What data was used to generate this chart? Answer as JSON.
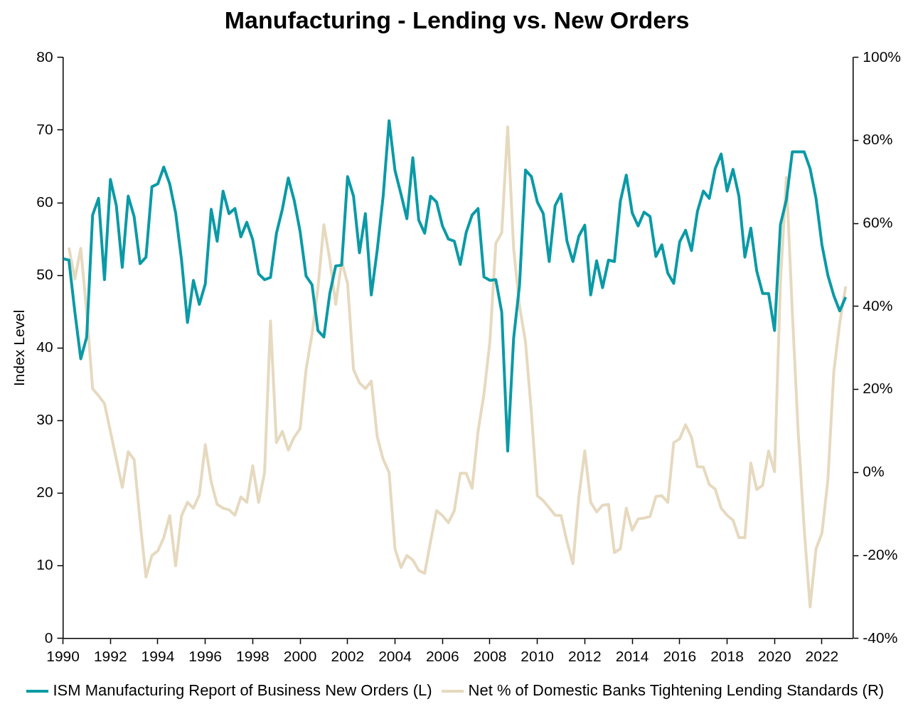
{
  "chart_data": {
    "type": "line",
    "title": "Manufacturing - Lending vs. New Orders",
    "ylabel": "Index Level",
    "x": [
      1990,
      1990.25,
      1990.5,
      1990.75,
      1991,
      1991.25,
      1991.5,
      1991.75,
      1992,
      1992.25,
      1992.5,
      1992.75,
      1993,
      1993.25,
      1993.5,
      1993.75,
      1994,
      1994.25,
      1994.5,
      1994.75,
      1995,
      1995.25,
      1995.5,
      1995.75,
      1996,
      1996.25,
      1996.5,
      1996.75,
      1997,
      1997.25,
      1997.5,
      1997.75,
      1998,
      1998.25,
      1998.5,
      1998.75,
      1999,
      1999.25,
      1999.5,
      1999.75,
      2000,
      2000.25,
      2000.5,
      2000.75,
      2001,
      2001.25,
      2001.5,
      2001.75,
      2002,
      2002.25,
      2002.5,
      2002.75,
      2003,
      2003.25,
      2003.5,
      2003.75,
      2004,
      2004.25,
      2004.5,
      2004.75,
      2005,
      2005.25,
      2005.5,
      2005.75,
      2006,
      2006.25,
      2006.5,
      2006.75,
      2007,
      2007.25,
      2007.5,
      2007.75,
      2008,
      2008.25,
      2008.5,
      2008.75,
      2009,
      2009.25,
      2009.5,
      2009.75,
      2010,
      2010.25,
      2010.5,
      2010.75,
      2011,
      2011.25,
      2011.5,
      2011.75,
      2012,
      2012.25,
      2012.5,
      2012.75,
      2013,
      2013.25,
      2013.5,
      2013.75,
      2014,
      2014.25,
      2014.5,
      2014.75,
      2015,
      2015.25,
      2015.5,
      2015.75,
      2016,
      2016.25,
      2016.5,
      2016.75,
      2017,
      2017.25,
      2017.5,
      2017.75,
      2018,
      2018.25,
      2018.5,
      2018.75,
      2019,
      2019.25,
      2019.5,
      2019.75,
      2020,
      2020.25,
      2020.5,
      2020.75,
      2021,
      2021.25,
      2021.5,
      2021.75,
      2022,
      2022.25,
      2022.5,
      2022.75,
      2023
    ],
    "series": [
      {
        "name": "ISM Manufacturing Report of Business New Orders (L)",
        "color": "#0a9aa6",
        "values": [
          52.3,
          52.1,
          45,
          38.5,
          41.5,
          58.3,
          60.6,
          49.4,
          63.2,
          59.6,
          51.1,
          60.9,
          58.1,
          51.6,
          52.5,
          62.2,
          62.6,
          64.9,
          62.6,
          58.6,
          52.1,
          43.5,
          49.3,
          46,
          48.8,
          59.1,
          54.7,
          61.6,
          58.5,
          59.2,
          55.3,
          57.3,
          54.9,
          50.2,
          49.4,
          49.7,
          55.8,
          59.1,
          63.4,
          60.3,
          56,
          49.9,
          48.7,
          42.4,
          41.5,
          47.5,
          51.3,
          51.4,
          63.6,
          60.9,
          53.1,
          58.5,
          47.3,
          53.5,
          60.9,
          71.3,
          64.4,
          61.2,
          57.8,
          66.2,
          57.6,
          55.8,
          60.9,
          60.1,
          56.8,
          55,
          54.7,
          51.5,
          55.9,
          58.3,
          59.2,
          49.8,
          49.3,
          49.4,
          44.9,
          25.8,
          41.3,
          48.7,
          64.5,
          63.6,
          60.1,
          58.5,
          51.9,
          59.6,
          61.2,
          54.7,
          51.9,
          55.4,
          56.9,
          47.3,
          52,
          48.3,
          52.1,
          51.9,
          60.2,
          63.8,
          58.6,
          56.8,
          58.7,
          58.1,
          52.6,
          54.2,
          50.3,
          48.9,
          54.6,
          56.2,
          53.4,
          58.8,
          61.6,
          60.6,
          64.7,
          66.7,
          61.6,
          64.6,
          60.9,
          52.5,
          56.5,
          50.6,
          47.5,
          47.5,
          42.4,
          57,
          60.4,
          67,
          67,
          67,
          64.7,
          60.6,
          54.2,
          50,
          47.2,
          45.1,
          47
        ]
      },
      {
        "name": "Net % of Domestic Banks Tightening Lending Standards (R)",
        "color": "#e6d9bf",
        "axis": "y2",
        "values": [
          null,
          54.2,
          46.6,
          54,
          38.7,
          20.2,
          18.5,
          16.6,
          9.9,
          3.1,
          -3.6,
          5,
          3.1,
          -11.7,
          -25.2,
          -20,
          -18.9,
          -15.7,
          -10.4,
          -22.5,
          -10.4,
          -7.2,
          -8.6,
          -5.4,
          6.7,
          -2.3,
          -7.7,
          -8.6,
          -9,
          -10.3,
          -5.9,
          -7.2,
          1.6,
          -7.2,
          0,
          36.5,
          7.2,
          9.9,
          5.4,
          8.5,
          10.6,
          24.8,
          33.3,
          44.4,
          59.7,
          51.3,
          40.5,
          50.9,
          45.5,
          24.8,
          21.6,
          20.2,
          22,
          8.6,
          3.2,
          0,
          -18.4,
          -22.9,
          -20,
          -21.1,
          -23.6,
          -24.3,
          -16.6,
          -9.2,
          -10.4,
          -12.1,
          -9.2,
          -0.2,
          -0.2,
          -3.8,
          9.9,
          18.9,
          31.5,
          55.2,
          57.8,
          83.3,
          54,
          40.1,
          31.5,
          14.4,
          -5.6,
          -6.8,
          -8.5,
          -10.3,
          -10.4,
          -16.7,
          -22,
          -5.9,
          5.2,
          -7.2,
          -9.5,
          -7.9,
          -7.7,
          -19.3,
          -18.4,
          -8.6,
          -13.9,
          -11.2,
          -11,
          -10.6,
          -5.8,
          -5.6,
          -7.2,
          7.2,
          8.1,
          11.5,
          8.5,
          1.4,
          1.3,
          -2.9,
          -4,
          -8.6,
          -10.3,
          -11.5,
          -15.7,
          -15.7,
          2.3,
          -4.1,
          -3.1,
          5.2,
          0.2,
          45.9,
          71.1,
          38.7,
          9.5,
          -13.5,
          -32.4,
          -18.4,
          -14.6,
          -1.8,
          24.3,
          36,
          44.8
        ]
      }
    ],
    "xlim": [
      1990,
      2023.3
    ],
    "xticks": [
      1990,
      1992,
      1994,
      1996,
      1998,
      2000,
      2002,
      2004,
      2006,
      2008,
      2010,
      2012,
      2014,
      2016,
      2018,
      2020,
      2022
    ],
    "ylim": [
      0,
      80
    ],
    "yticks": [
      0,
      10,
      20,
      30,
      40,
      50,
      60,
      70,
      80
    ],
    "y2lim": [
      -40,
      100
    ],
    "y2ticks": [
      {
        "value": -40,
        "label": "-40%"
      },
      {
        "value": -20,
        "label": "-20%"
      },
      {
        "value": 0,
        "label": "0%"
      },
      {
        "value": 20,
        "label": "20%"
      },
      {
        "value": 40,
        "label": "40%"
      },
      {
        "value": 60,
        "label": "60%"
      },
      {
        "value": 80,
        "label": "80%"
      },
      {
        "value": 100,
        "label": "100%"
      }
    ],
    "grid": false,
    "legend": "bottom",
    "marker": "none",
    "line_style": "solid"
  }
}
